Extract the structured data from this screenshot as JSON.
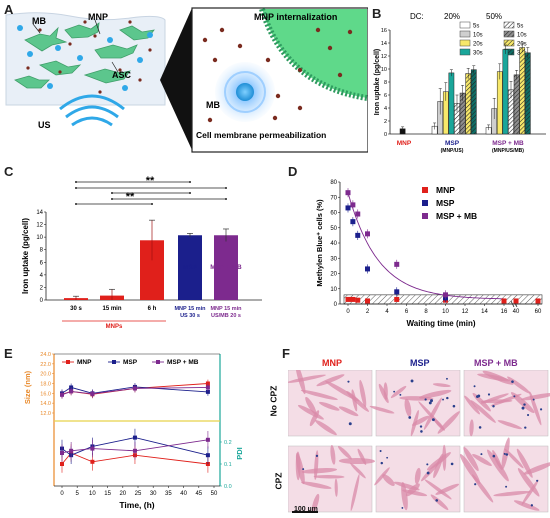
{
  "panels": {
    "A": {
      "label": "A",
      "texts": {
        "mb": "MB",
        "mnp": "MNP",
        "asc": "ASC",
        "us": "US",
        "mnp_internalization": "MNP internalization",
        "mb_inset": "MB",
        "cell_membrane": "Cell membrane permeabilization"
      }
    },
    "B": {
      "label": "B",
      "ylabel": "Iron uptake (pg/cell)",
      "dc_label": "DC:",
      "dc_20": "20%",
      "dc_50": "50%",
      "legend": [
        "5s",
        "10s",
        "20s",
        "30s",
        "5s",
        "10s",
        "20s",
        "30s"
      ],
      "yticks": [
        "0",
        "2",
        "4",
        "6",
        "8",
        "10",
        "12",
        "14",
        "16"
      ],
      "groups": [
        {
          "name": "MNP",
          "sub": "",
          "color": "#e0201b"
        },
        {
          "name": "MSP",
          "sub": "(MNP/US)",
          "color": "#1b1f8c"
        },
        {
          "name": "MSP + MB",
          "sub": "(MNP/US/MB)",
          "color": "#7d2a8e"
        }
      ]
    },
    "C": {
      "label": "C",
      "ylabel": "Iron uptake (pg/cell)",
      "sig1": "**",
      "sig2": "**",
      "yticks": [
        "0",
        "2",
        "4",
        "6",
        "8",
        "10",
        "12",
        "14"
      ],
      "cat_labels": [
        "30 s",
        "15 min",
        "6 h"
      ],
      "msp_top": "MSP",
      "mspmb_top": "MSP + MB",
      "msp_bottom1": "MNP 15 min",
      "msp_bottom2": "US 30 s",
      "mspmb_bottom1": "MNP 15 min",
      "mspmb_bottom2": "US/MB 20 s",
      "group_label": "MNPs"
    },
    "D": {
      "label": "D",
      "ylabel": "Methylen Blue⁺ cells (%)",
      "xlabel": "Waiting time (min)",
      "legend": [
        "MNP",
        "MSP",
        "MSP + MB"
      ],
      "yticks": [
        "0",
        "10",
        "20",
        "30",
        "40",
        "50",
        "60",
        "70",
        "80"
      ],
      "xticks": [
        "0",
        "2",
        "4",
        "6",
        "8",
        "10",
        "12",
        "14",
        "16",
        "40",
        "60"
      ]
    },
    "E": {
      "label": "E",
      "ylabel_left": "Size (nm)",
      "ylabel_right": "PDI",
      "xlabel": "Time, (h)",
      "legend": [
        "MNP",
        "MSP",
        "MSP + MB"
      ],
      "yticks_left": [
        "12.0",
        "14.0",
        "16.0",
        "18.0",
        "20.0",
        "22.0",
        "24.0"
      ],
      "yticks_right": [
        "0.0",
        "0.1",
        "0.2"
      ],
      "xticks": [
        "0",
        "5",
        "10",
        "15",
        "20",
        "25",
        "30",
        "35",
        "40",
        "45",
        "50"
      ]
    },
    "F": {
      "label": "F",
      "cols": [
        "MNP",
        "MSP",
        "MSP + MB"
      ],
      "rows": [
        "No CPZ",
        "CPZ"
      ],
      "scale": "100 µm"
    }
  },
  "colors": {
    "mnp": "#e0201b",
    "msp": "#1b1f8c",
    "mspmb": "#7d2a8e",
    "size_axis": "#e8892a",
    "pdi_axis": "#1aa69a",
    "membrane_green": "#5fd98a"
  },
  "chart_data": [
    {
      "panel": "B",
      "type": "bar",
      "ylabel": "Iron uptake (pg/cell)",
      "ylim": [
        0,
        16
      ],
      "categories": [
        "MNP",
        "MSP (MNP/US)",
        "MSP + MB (MNP/US/MB)"
      ],
      "series": [
        {
          "name": "MNP",
          "values": [
            0.8,
            null,
            null
          ],
          "errors": [
            0.3,
            null,
            null
          ]
        },
        {
          "name": "20% 5s",
          "values": [
            null,
            1.2,
            1.0
          ],
          "errors": [
            null,
            0.5,
            0.4
          ]
        },
        {
          "name": "20% 10s",
          "values": [
            null,
            5.0,
            3.9
          ],
          "errors": [
            null,
            2.0,
            1.6
          ]
        },
        {
          "name": "20% 20s",
          "values": [
            null,
            6.5,
            9.6
          ],
          "errors": [
            null,
            1.4,
            1.2
          ]
        },
        {
          "name": "20% 30s",
          "values": [
            null,
            9.4,
            13.0
          ],
          "errors": [
            null,
            0.5,
            0.7
          ]
        },
        {
          "name": "50% 5s",
          "values": [
            null,
            4.7,
            6.8
          ],
          "errors": [
            null,
            1.3,
            1.3
          ]
        },
        {
          "name": "50% 10s",
          "values": [
            null,
            6.3,
            9.1
          ],
          "errors": [
            null,
            1.2,
            0.7
          ]
        },
        {
          "name": "50% 20s",
          "values": [
            null,
            9.3,
            13.3
          ],
          "errors": [
            null,
            0.8,
            0.7
          ]
        },
        {
          "name": "50% 30s",
          "values": [
            null,
            9.9,
            12.5
          ],
          "errors": [
            null,
            0.6,
            0.8
          ]
        }
      ]
    },
    {
      "panel": "C",
      "type": "bar",
      "ylabel": "Iron uptake (pg/cell)",
      "ylim": [
        0,
        14
      ],
      "categories": [
        "MNPs 30 s",
        "MNPs 15 min",
        "MNPs 6 h",
        "MSP",
        "MSP + MB"
      ],
      "values": [
        0.3,
        0.7,
        9.5,
        10.3,
        10.3
      ],
      "errors": [
        0.3,
        1.0,
        3.2,
        0.3,
        1.0
      ]
    },
    {
      "panel": "D",
      "type": "scatter",
      "ylabel": "Methylen Blue⁺ cells (%)",
      "xlabel": "Waiting time (min)",
      "ylim": [
        0,
        80
      ],
      "series": [
        {
          "name": "MNP",
          "x": [
            0,
            0.5,
            1,
            2,
            5,
            10,
            16,
            40,
            60
          ],
          "y": [
            3,
            3,
            2.5,
            2,
            3,
            2.5,
            2,
            2,
            2
          ]
        },
        {
          "name": "MSP",
          "x": [
            0,
            0.5,
            1,
            2,
            5,
            10
          ],
          "y": [
            63,
            54,
            45,
            23,
            8,
            4
          ]
        },
        {
          "name": "MSP + MB",
          "x": [
            0,
            0.5,
            1,
            2,
            5,
            10
          ],
          "y": [
            73,
            65,
            59,
            46,
            26,
            6
          ]
        }
      ]
    },
    {
      "panel": "E",
      "type": "line",
      "xlabel": "Time, (h)",
      "x": [
        0,
        3,
        10,
        24,
        48
      ],
      "series": [
        {
          "name": "MNP size",
          "axis": "Size (nm)",
          "values": [
            15.8,
            16.4,
            15.8,
            17.0,
            18.0
          ]
        },
        {
          "name": "MSP size",
          "axis": "Size (nm)",
          "values": [
            16.0,
            17.2,
            16.0,
            17.3,
            16.3
          ]
        },
        {
          "name": "MSP + MB size",
          "axis": "Size (nm)",
          "values": [
            15.7,
            16.4,
            15.9,
            17.0,
            17.2
          ]
        },
        {
          "name": "MNP PDI",
          "axis": "PDI",
          "values": [
            0.1,
            0.15,
            0.11,
            0.14,
            0.1
          ]
        },
        {
          "name": "MSP PDI",
          "axis": "PDI",
          "values": [
            0.17,
            0.14,
            0.18,
            0.22,
            0.14
          ]
        },
        {
          "name": "MSP + MB PDI",
          "axis": "PDI",
          "values": [
            0.15,
            0.16,
            0.17,
            0.16,
            0.21
          ]
        }
      ]
    }
  ]
}
